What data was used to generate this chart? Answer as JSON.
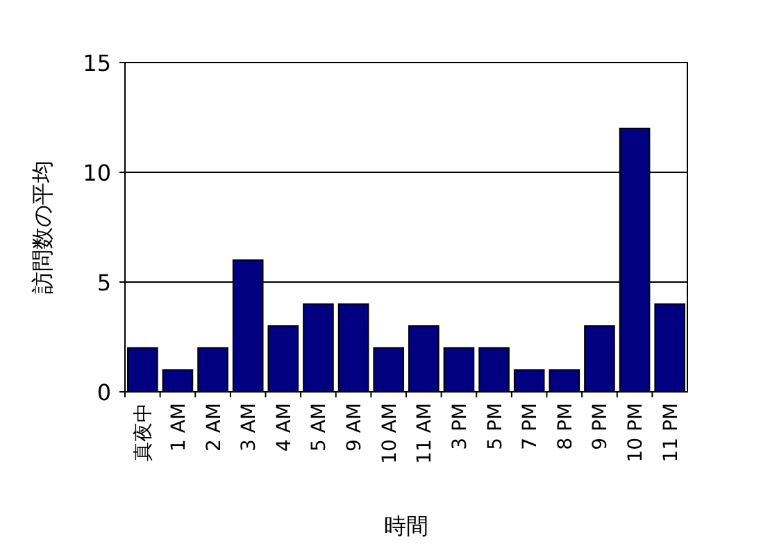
{
  "chart_data": {
    "type": "bar",
    "xlabel": "時間",
    "ylabel": "訪問数の平均",
    "categories": [
      "真夜中",
      "1 AM",
      "2 AM",
      "3 AM",
      "4 AM",
      "5 AM",
      "9 AM",
      "10 AM",
      "11 AM",
      "3 PM",
      "5 PM",
      "7 PM",
      "8 PM",
      "9 PM",
      "10 PM",
      "11 PM"
    ],
    "values": [
      2,
      1,
      2,
      6,
      3,
      4,
      4,
      2,
      3,
      2,
      2,
      1,
      1,
      3,
      12,
      4
    ],
    "color": "#000080",
    "ylim": [
      0,
      15
    ],
    "yticks": [
      0,
      5,
      10,
      15
    ],
    "grid": "y"
  }
}
